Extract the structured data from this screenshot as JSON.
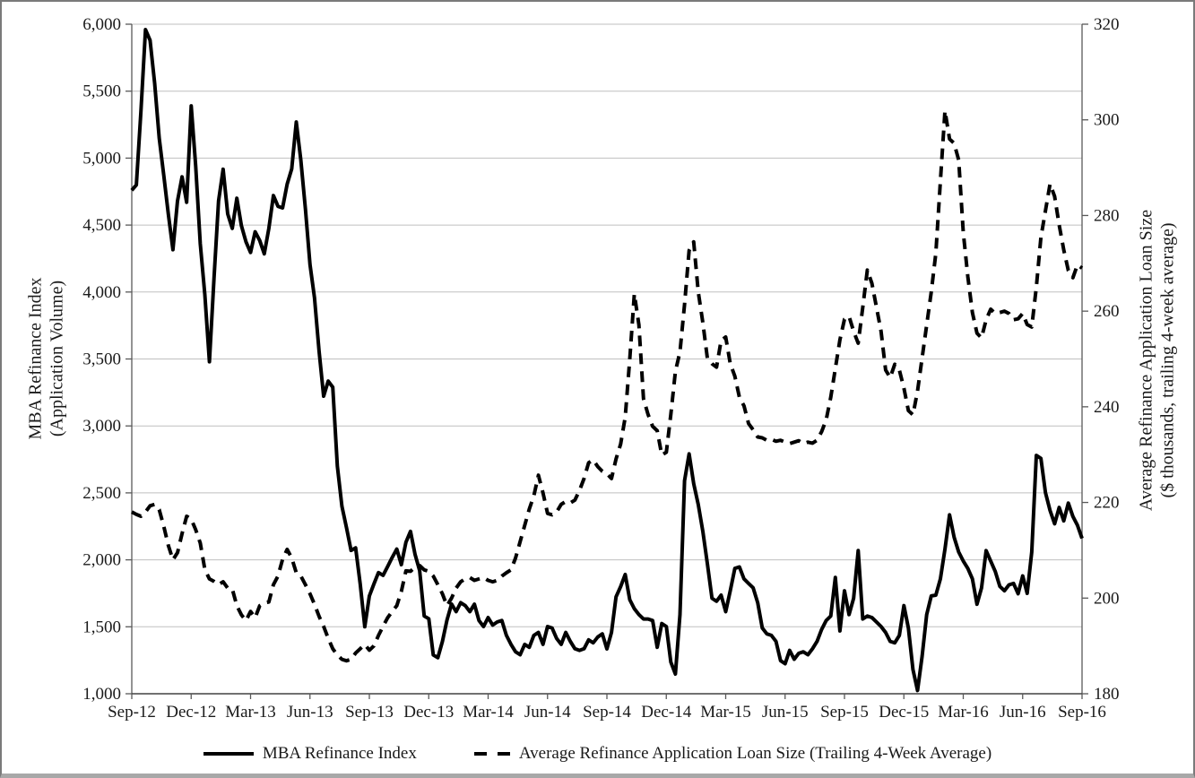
{
  "chart_data": {
    "type": "line",
    "title": "",
    "grid": true,
    "legend_position": "bottom",
    "x_axis": {
      "tick_labels": [
        "Sep-12",
        "Dec-12",
        "Mar-13",
        "Jun-13",
        "Sep-13",
        "Dec-13",
        "Mar-14",
        "Jun-14",
        "Sep-14",
        "Dec-14",
        "Mar-15",
        "Jun-15",
        "Sep-15",
        "Dec-15",
        "Mar-16",
        "Jun-16",
        "Sep-16"
      ],
      "points_per_tick_interval": 13,
      "n_points": 209
    },
    "y_left": {
      "title_line1": "MBA Refinance Index",
      "title_line2": "(Application Volume)",
      "min": 1000,
      "max": 6000,
      "step": 500,
      "tick_values": [
        1000,
        1500,
        2000,
        2500,
        3000,
        3500,
        4000,
        4500,
        5000,
        5500,
        6000
      ],
      "tick_labels": [
        "1,000",
        "1,500",
        "2,000",
        "2,500",
        "3,000",
        "3,500",
        "4,000",
        "4,500",
        "5,000",
        "5,500",
        "6,000"
      ]
    },
    "y_right": {
      "title_line1": "Average Refinance Application Loan Size",
      "title_line2": "($ thousands, trailing 4-week average)",
      "min": 180,
      "max": 320,
      "step": 20,
      "tick_values": [
        180,
        200,
        220,
        240,
        260,
        280,
        300,
        320
      ],
      "tick_labels": [
        "180",
        "200",
        "220",
        "240",
        "260",
        "280",
        "300",
        "320"
      ]
    },
    "legend": [
      "MBA Refinance Index",
      "Average Refinance Application Loan Size (Trailing 4-Week Average)"
    ],
    "series": [
      {
        "name": "MBA Refinance Index",
        "axis": "left",
        "style": "solid",
        "color": "#000000",
        "values": [
          4760,
          4800,
          5350,
          5960,
          5880,
          5560,
          5150,
          4870,
          4580,
          4316,
          4680,
          4860,
          4670,
          5390,
          4940,
          4360,
          3980,
          3479,
          4100,
          4680,
          4917,
          4583,
          4475,
          4700,
          4495,
          4375,
          4295,
          4450,
          4385,
          4285,
          4475,
          4720,
          4640,
          4628,
          4805,
          4920,
          5270,
          4983,
          4620,
          4205,
          3958,
          3560,
          3222,
          3335,
          3289,
          2700,
          2400,
          2240,
          2070,
          2090,
          1820,
          1500,
          1730,
          1820,
          1905,
          1884,
          1950,
          2018,
          2080,
          1964,
          2131,
          2213,
          2040,
          1920,
          1580,
          1560,
          1290,
          1269,
          1390,
          1550,
          1670,
          1613,
          1680,
          1658,
          1613,
          1669,
          1547,
          1502,
          1569,
          1513,
          1536,
          1547,
          1436,
          1369,
          1313,
          1291,
          1369,
          1347,
          1436,
          1458,
          1369,
          1502,
          1491,
          1413,
          1369,
          1458,
          1391,
          1336,
          1324,
          1336,
          1402,
          1380,
          1424,
          1447,
          1335,
          1458,
          1724,
          1800,
          1891,
          1702,
          1635,
          1591,
          1558,
          1558,
          1547,
          1347,
          1524,
          1502,
          1236,
          1147,
          1591,
          2591,
          2791,
          2569,
          2413,
          2213,
          1969,
          1713,
          1691,
          1736,
          1613,
          1769,
          1936,
          1947,
          1858,
          1824,
          1791,
          1680,
          1491,
          1447,
          1436,
          1391,
          1247,
          1224,
          1324,
          1258,
          1302,
          1313,
          1291,
          1336,
          1391,
          1480,
          1547,
          1580,
          1869,
          1469,
          1769,
          1591,
          1713,
          2069,
          1558,
          1580,
          1569,
          1536,
          1502,
          1458,
          1391,
          1380,
          1436,
          1658,
          1490,
          1180,
          1024,
          1280,
          1591,
          1730,
          1736,
          1858,
          2080,
          2336,
          2169,
          2058,
          1991,
          1936,
          1858,
          1669,
          1791,
          2069,
          1991,
          1913,
          1802,
          1769,
          1813,
          1824,
          1747,
          1880,
          1750,
          2058,
          2780,
          2758,
          2502,
          2369,
          2269,
          2391,
          2291,
          2424,
          2324,
          2258,
          2160
        ]
      },
      {
        "name": "Average Refinance Application Loan Size (Trailing 4-Week Average)",
        "axis": "right",
        "style": "dashed",
        "color": "#000000",
        "values": [
          218,
          217.5,
          217.1,
          218,
          219.3,
          219.6,
          218.5,
          215,
          211,
          208,
          209.5,
          213.5,
          217.1,
          216.5,
          214.3,
          211.5,
          206,
          204,
          203.5,
          202.8,
          203.4,
          202.1,
          201.9,
          198.4,
          196.5,
          195.3,
          197.2,
          195.9,
          198.4,
          199,
          199.2,
          202.8,
          204.6,
          208.1,
          210.2,
          208.4,
          205.3,
          204.6,
          202.8,
          200.9,
          198.7,
          196.2,
          194.1,
          191.6,
          189.4,
          188.1,
          187.2,
          186.9,
          187.2,
          188.5,
          189.4,
          190.3,
          189.1,
          190,
          192.2,
          194.1,
          195.9,
          197.2,
          198.4,
          201.4,
          205.7,
          205.6,
          206.5,
          206.8,
          205.9,
          205.6,
          204.6,
          202.8,
          200.9,
          198.4,
          200,
          202.1,
          203.4,
          204,
          204.3,
          203.7,
          204,
          204.3,
          203.7,
          203.4,
          203.7,
          204.6,
          205.3,
          205.9,
          208.4,
          211.8,
          215.2,
          218.6,
          221.4,
          225.7,
          222,
          217.7,
          217.4,
          218,
          219.6,
          220.2,
          219.9,
          220.5,
          222.5,
          225,
          228.3,
          228.9,
          227.5,
          226.5,
          226,
          225,
          229.1,
          232.2,
          237.8,
          250,
          263.6,
          257.1,
          241.7,
          238.4,
          235.9,
          235,
          229.9,
          230.5,
          238.4,
          247.4,
          251.5,
          261.4,
          272.7,
          274.5,
          264,
          257.6,
          250.1,
          249,
          248.3,
          253.9,
          254.6,
          249,
          246.4,
          242,
          240.2,
          236.5,
          235.2,
          233.7,
          233.5,
          233,
          233.2,
          232.8,
          233,
          232.6,
          232.3,
          232.6,
          232.9,
          232.3,
          232.6,
          232.4,
          233,
          234.8,
          237.3,
          242,
          248,
          254,
          258.3,
          258.9,
          255.8,
          253.3,
          260.8,
          268.6,
          265.8,
          260.8,
          255.8,
          247.7,
          246.1,
          248.9,
          247.7,
          243.9,
          239.2,
          238.3,
          243.3,
          250.2,
          257.1,
          264,
          272.1,
          287.2,
          301.9,
          296,
          295.1,
          291.6,
          276.5,
          267.2,
          259.7,
          255.4,
          254.4,
          258.2,
          260.4,
          259.5,
          259.7,
          260,
          259.5,
          258.2,
          258.4,
          259.5,
          257.2,
          256.7,
          265,
          275.4,
          281,
          286.6,
          284,
          278,
          272.8,
          268.5,
          267,
          269.7,
          269
        ]
      }
    ]
  }
}
